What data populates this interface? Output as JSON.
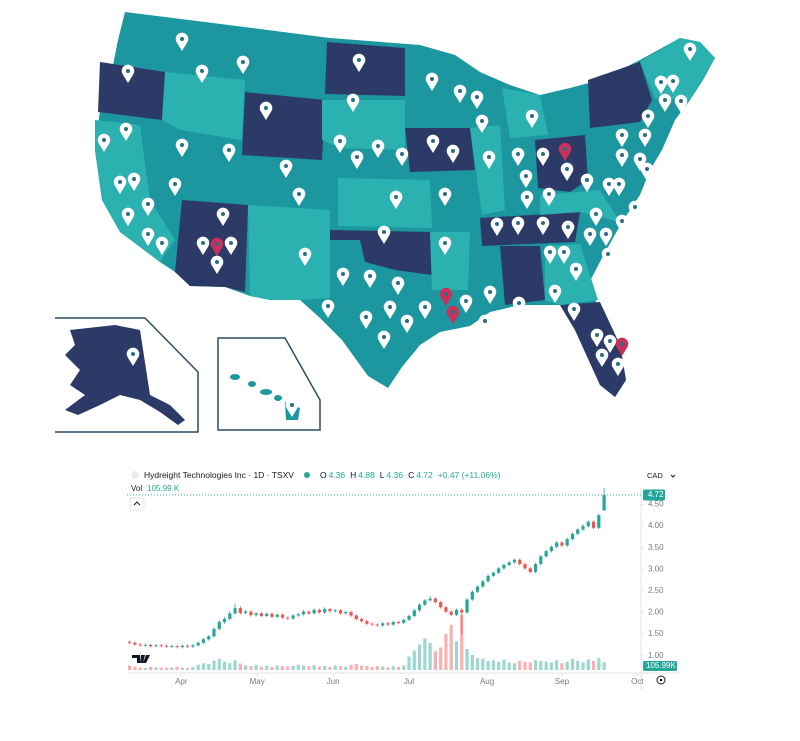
{
  "chart_data": {
    "type": "candlestick",
    "title": "Hydreight Technologies Inc · 1D · TSXV",
    "ohlc_labels": [
      "O",
      "H",
      "L",
      "C"
    ],
    "change_label": "+0.47 (+11.06%)",
    "volume_title": "Vol",
    "volume_label": "105.99 K",
    "volume_axis_label": "105.99K",
    "currency": "CAD",
    "up_color": "#26a69a",
    "down_color": "#ef5350",
    "candles": [
      [
        1.32,
        1.35,
        1.27,
        1.3
      ],
      [
        1.3,
        1.33,
        1.23,
        1.26
      ],
      [
        1.26,
        1.29,
        1.21,
        1.24
      ],
      [
        1.24,
        1.28,
        1.21,
        1.25
      ],
      [
        1.25,
        1.28,
        1.19,
        1.22
      ],
      [
        1.22,
        1.27,
        1.19,
        1.24
      ],
      [
        1.24,
        1.27,
        1.2,
        1.23
      ],
      [
        1.23,
        1.26,
        1.18,
        1.21
      ],
      [
        1.21,
        1.25,
        1.18,
        1.22
      ],
      [
        1.22,
        1.25,
        1.17,
        1.2
      ],
      [
        1.2,
        1.26,
        1.17,
        1.23
      ],
      [
        1.23,
        1.26,
        1.18,
        1.21
      ],
      [
        1.21,
        1.27,
        1.18,
        1.24
      ],
      [
        1.24,
        1.33,
        1.21,
        1.3
      ],
      [
        1.3,
        1.41,
        1.27,
        1.38
      ],
      [
        1.38,
        1.48,
        1.35,
        1.45
      ],
      [
        1.45,
        1.66,
        1.42,
        1.62
      ],
      [
        1.62,
        1.82,
        1.59,
        1.78
      ],
      [
        1.78,
        1.9,
        1.74,
        1.85
      ],
      [
        1.85,
        2.03,
        1.82,
        1.98
      ],
      [
        1.98,
        2.2,
        1.95,
        2.1
      ],
      [
        2.1,
        2.14,
        1.95,
        1.99
      ],
      [
        1.99,
        2.06,
        1.96,
        2.02
      ],
      [
        2.02,
        2.05,
        1.9,
        1.94
      ],
      [
        1.94,
        2.01,
        1.91,
        1.98
      ],
      [
        1.98,
        2.01,
        1.89,
        1.92
      ],
      [
        1.92,
        2.0,
        1.89,
        1.97
      ],
      [
        1.97,
        2.0,
        1.87,
        1.9
      ],
      [
        1.9,
        1.98,
        1.87,
        1.95
      ],
      [
        1.95,
        1.98,
        1.85,
        1.88
      ],
      [
        1.88,
        1.91,
        1.83,
        1.86
      ],
      [
        1.86,
        1.96,
        1.83,
        1.93
      ],
      [
        1.93,
        1.99,
        1.9,
        1.96
      ],
      [
        1.96,
        2.06,
        1.93,
        2.02
      ],
      [
        2.02,
        2.05,
        1.95,
        1.98
      ],
      [
        1.98,
        2.1,
        1.95,
        2.06
      ],
      [
        2.06,
        2.09,
        1.97,
        2.0
      ],
      [
        2.0,
        2.12,
        1.97,
        2.08
      ],
      [
        2.08,
        2.11,
        2.0,
        2.03
      ],
      [
        2.03,
        2.08,
        2.0,
        2.05
      ],
      [
        2.05,
        2.08,
        1.95,
        1.98
      ],
      [
        1.98,
        2.04,
        1.95,
        2.01
      ],
      [
        2.01,
        2.04,
        1.9,
        1.93
      ],
      [
        1.93,
        1.96,
        1.82,
        1.85
      ],
      [
        1.85,
        1.88,
        1.77,
        1.8
      ],
      [
        1.8,
        1.83,
        1.71,
        1.74
      ],
      [
        1.74,
        1.77,
        1.69,
        1.72
      ],
      [
        1.72,
        1.75,
        1.67,
        1.7
      ],
      [
        1.7,
        1.78,
        1.67,
        1.75
      ],
      [
        1.75,
        1.78,
        1.69,
        1.72
      ],
      [
        1.72,
        1.81,
        1.69,
        1.78
      ],
      [
        1.78,
        1.81,
        1.73,
        1.76
      ],
      [
        1.76,
        1.86,
        1.73,
        1.83
      ],
      [
        1.83,
        1.95,
        1.8,
        1.92
      ],
      [
        1.92,
        2.08,
        1.89,
        2.05
      ],
      [
        2.05,
        2.21,
        2.02,
        2.18
      ],
      [
        2.18,
        2.31,
        2.15,
        2.28
      ],
      [
        2.28,
        2.38,
        2.25,
        2.32
      ],
      [
        2.32,
        2.35,
        2.21,
        2.24
      ],
      [
        2.24,
        2.27,
        2.09,
        2.12
      ],
      [
        2.12,
        2.15,
        1.99,
        2.02
      ],
      [
        2.02,
        2.05,
        1.92,
        1.95
      ],
      [
        1.95,
        2.09,
        1.92,
        2.06
      ],
      [
        2.06,
        2.1,
        1.5,
        2.0
      ],
      [
        2.0,
        2.33,
        1.97,
        2.3
      ],
      [
        2.3,
        2.51,
        2.27,
        2.48
      ],
      [
        2.48,
        2.63,
        2.45,
        2.6
      ],
      [
        2.6,
        2.75,
        2.57,
        2.72
      ],
      [
        2.72,
        2.88,
        2.69,
        2.85
      ],
      [
        2.85,
        2.95,
        2.82,
        2.92
      ],
      [
        2.92,
        3.05,
        2.89,
        3.02
      ],
      [
        3.02,
        3.13,
        2.99,
        3.1
      ],
      [
        3.1,
        3.19,
        3.07,
        3.16
      ],
      [
        3.16,
        3.25,
        3.13,
        3.22
      ],
      [
        3.22,
        3.25,
        3.09,
        3.12
      ],
      [
        3.12,
        3.15,
        2.99,
        3.02
      ],
      [
        3.02,
        3.05,
        2.91,
        2.94
      ],
      [
        2.94,
        3.15,
        2.91,
        3.12
      ],
      [
        3.12,
        3.33,
        3.09,
        3.3
      ],
      [
        3.3,
        3.45,
        3.27,
        3.42
      ],
      [
        3.42,
        3.55,
        3.39,
        3.52
      ],
      [
        3.52,
        3.65,
        3.49,
        3.62
      ],
      [
        3.62,
        3.65,
        3.52,
        3.55
      ],
      [
        3.55,
        3.73,
        3.52,
        3.7
      ],
      [
        3.7,
        3.85,
        3.67,
        3.82
      ],
      [
        3.82,
        3.95,
        3.79,
        3.92
      ],
      [
        3.92,
        4.05,
        3.89,
        4.0
      ],
      [
        4.0,
        4.13,
        3.97,
        4.1
      ],
      [
        4.1,
        4.13,
        3.93,
        3.96
      ],
      [
        3.96,
        4.28,
        3.93,
        4.25
      ],
      [
        4.36,
        4.88,
        4.36,
        4.72
      ]
    ],
    "volumes": [
      60,
      45,
      30,
      25,
      40,
      35,
      30,
      28,
      32,
      45,
      30,
      25,
      40,
      70,
      90,
      80,
      120,
      150,
      110,
      90,
      130,
      85,
      60,
      50,
      70,
      45,
      55,
      40,
      60,
      50,
      45,
      55,
      70,
      60,
      50,
      65,
      45,
      55,
      40,
      60,
      50,
      45,
      70,
      80,
      60,
      55,
      40,
      50,
      45,
      35,
      50,
      40,
      60,
      180,
      260,
      340,
      420,
      360,
      250,
      300,
      480,
      600,
      380,
      730,
      280,
      200,
      160,
      150,
      120,
      130,
      110,
      140,
      100,
      90,
      120,
      110,
      100,
      130,
      120,
      110,
      100,
      130,
      90,
      110,
      150,
      120,
      100,
      140,
      120,
      160,
      105.99
    ],
    "xlim": [
      -0.5,
      97
    ],
    "xticks": [
      {
        "value": 9.8,
        "label": "Apr"
      },
      {
        "value": 24.2,
        "label": "May"
      },
      {
        "value": 38.6,
        "label": "Jun"
      },
      {
        "value": 53,
        "label": "Jul"
      },
      {
        "value": 67.8,
        "label": "Aug"
      },
      {
        "value": 82,
        "label": "Sep"
      },
      {
        "value": 96.3,
        "label": "Oct"
      }
    ],
    "ylim": [
      0.6,
      4.95
    ],
    "yticks": [
      {
        "value": 1,
        "label": "1.00"
      },
      {
        "value": 1.5,
        "label": "1.50"
      },
      {
        "value": 2,
        "label": "2.00"
      },
      {
        "value": 2.5,
        "label": "2.50"
      },
      {
        "value": 3,
        "label": "3.00"
      },
      {
        "value": 3.5,
        "label": "3.50"
      },
      {
        "value": 4,
        "label": "4.00"
      },
      {
        "value": 4.5,
        "label": "4.50"
      }
    ]
  }
}
